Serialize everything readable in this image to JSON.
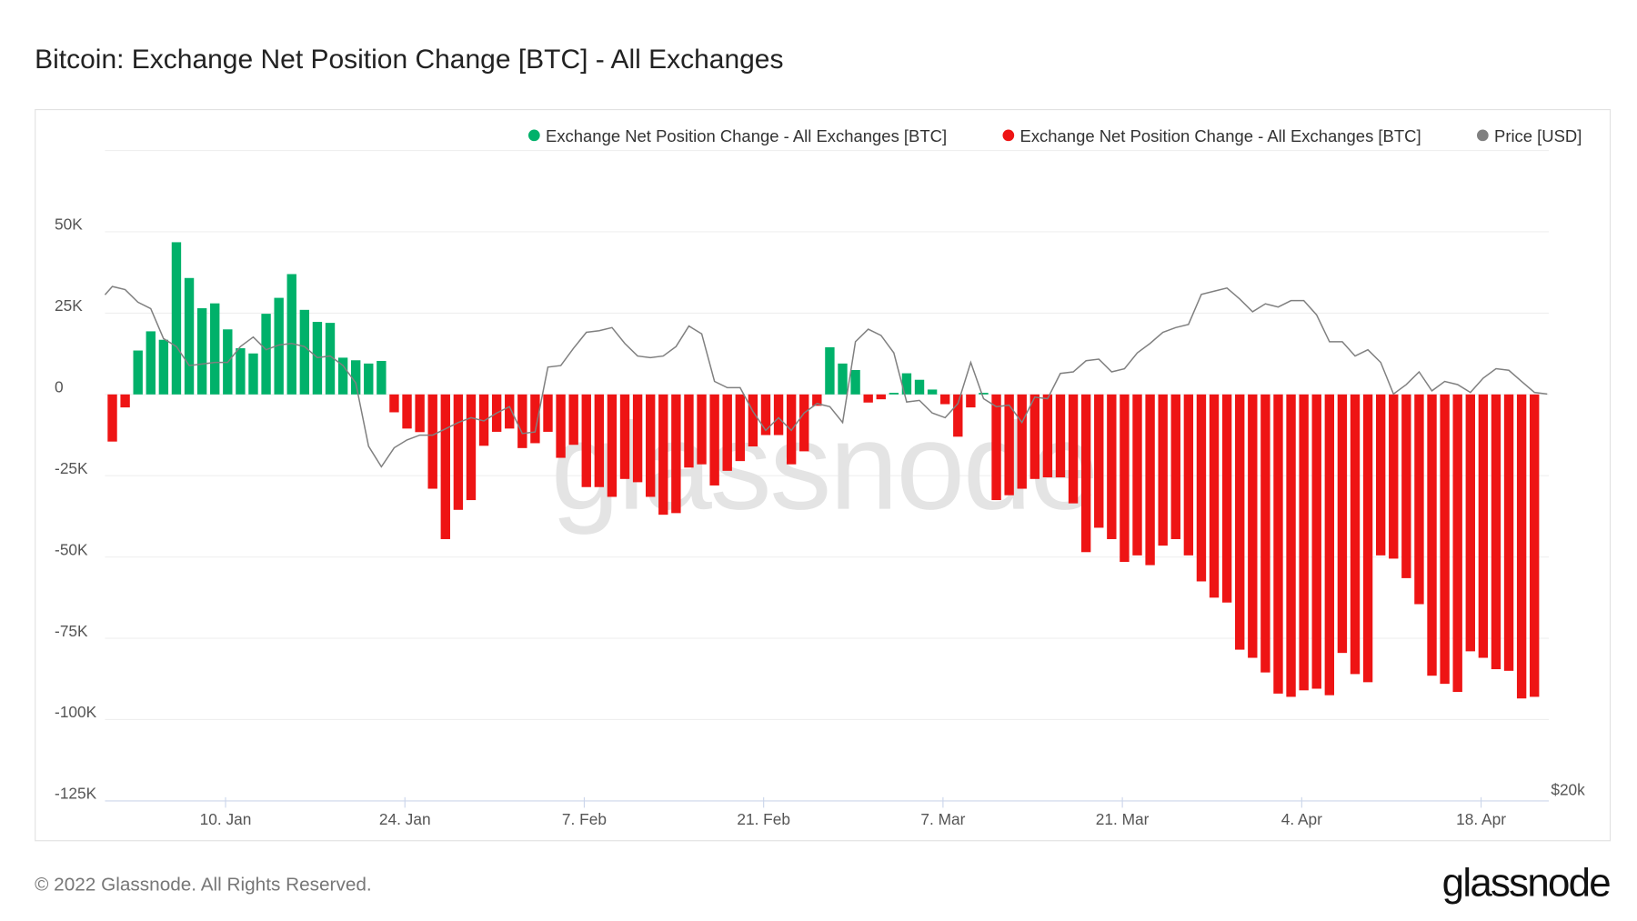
{
  "title": "Bitcoin: Exchange Net Position Change [BTC] - All Exchanges",
  "footer": {
    "copyright": "© 2022 Glassnode. All Rights Reserved.",
    "logo": "glassnode"
  },
  "watermark": "glassnode",
  "colors": {
    "positive": "#00b16a",
    "negative": "#ee1414",
    "price": "#808080"
  },
  "legend": [
    {
      "label": "Exchange Net Position Change - All Exchanges [BTC]",
      "color": "#00b16a"
    },
    {
      "label": "Exchange Net Position Change - All Exchanges [BTC]",
      "color": "#ee1414"
    },
    {
      "label": "Price [USD]",
      "color": "#808080"
    }
  ],
  "chart_data": {
    "type": "bar",
    "x_start": "2022-01-01",
    "x_end": "2022-04-23",
    "x_tick_labels": [
      "10. Jan",
      "24. Jan",
      "7. Feb",
      "21. Feb",
      "7. Mar",
      "21. Mar",
      "4. Apr",
      "18. Apr"
    ],
    "x_tick_dates": [
      "2022-01-10",
      "2022-01-24",
      "2022-02-07",
      "2022-02-21",
      "2022-03-07",
      "2022-03-21",
      "2022-04-04",
      "2022-04-18"
    ],
    "y_tick_labels": [
      "50K",
      "25K",
      "0",
      "-25K",
      "-50K",
      "-75K",
      "-100K",
      "-125K"
    ],
    "y_ticks": [
      50000,
      25000,
      0,
      -25000,
      -50000,
      -75000,
      -100000,
      -125000
    ],
    "ylim": [
      -125000,
      75000
    ],
    "y2_tick_labels": [
      "$20k"
    ],
    "grid": true,
    "legend_position": "top-right",
    "series": [
      {
        "name": "Exchange Net Position Change - All Exchanges [BTC]",
        "type": "bar",
        "unit": "K BTC",
        "values": [
          -14.5,
          -4,
          13.5,
          19.4,
          16.8,
          46.8,
          35.8,
          26.5,
          28,
          20,
          14.2,
          12.6,
          24.8,
          29.7,
          37,
          26,
          22.3,
          22,
          11.3,
          10.5,
          9.5,
          10.3,
          -5.5,
          -10.5,
          -11.6,
          -29,
          -44.5,
          -35.5,
          -32.5,
          -15.8,
          -11.5,
          -10.5,
          -16.5,
          -15,
          -11.5,
          -19.5,
          -15.5,
          -28.5,
          -28.5,
          -31.5,
          -26,
          -27,
          -31.5,
          -37,
          -36.5,
          -22.5,
          -21.5,
          -28,
          -23.5,
          -20.5,
          -16,
          -12.5,
          -12.5,
          -21.5,
          -17.5,
          -3.5,
          14.5,
          9.5,
          7.5,
          -2.5,
          -1.5,
          0.5,
          6.5,
          4.5,
          1.5,
          -3,
          -13,
          -4,
          0.5,
          -32.5,
          -31,
          -29,
          -26,
          -25.5,
          -25.5,
          -33.5,
          -48.5,
          -41,
          -44.5,
          -51.5,
          -49.5,
          -52.5,
          -46.5,
          -44.5,
          -49.5,
          -57.5,
          -62.5,
          -64,
          -78.5,
          -81,
          -85.5,
          -92,
          -93,
          -91,
          -90.5,
          -92.5,
          -79.5,
          -86,
          -88.5,
          -49.5,
          -50.5,
          -56.5,
          -64.5,
          -86.5,
          -89,
          -91.5,
          -79,
          -81,
          -84.5,
          -85,
          -93.5,
          -93
        ]
      },
      {
        "name": "Price [USD]",
        "type": "line",
        "values": [
          47700,
          47500,
          46700,
          46300,
          44400,
          43900,
          42700,
          42800,
          42900,
          42900,
          43900,
          44500,
          43700,
          44000,
          44100,
          43900,
          43200,
          43300,
          42700,
          41600,
          37600,
          36300,
          37500,
          38000,
          38300,
          38300,
          38700,
          39100,
          39400,
          39200,
          39700,
          40100,
          38400,
          38500,
          42600,
          42700,
          43800,
          44800,
          44900,
          45100,
          44100,
          43300,
          43200,
          43300,
          43900,
          45200,
          44700,
          41700,
          41300,
          41300,
          39800,
          38600,
          39400,
          38600,
          39700,
          40300,
          40100,
          39100,
          44200,
          45000,
          44600,
          43500,
          40400,
          40500,
          39700,
          39400,
          40300,
          42900,
          40600,
          40100,
          40200,
          39100,
          40700,
          40600,
          42200,
          42300,
          43000,
          43100,
          42300,
          42500,
          43500,
          44100,
          44800,
          45100,
          45300,
          47200,
          47400,
          47600,
          46900,
          46100,
          46600,
          46400,
          46800,
          46800,
          45900,
          44200,
          44200,
          43300,
          43700,
          42900,
          40900,
          41500,
          42300,
          41100,
          41700,
          41500,
          41000,
          41900,
          42500,
          42400,
          41700,
          41000,
          40900
        ]
      }
    ]
  }
}
